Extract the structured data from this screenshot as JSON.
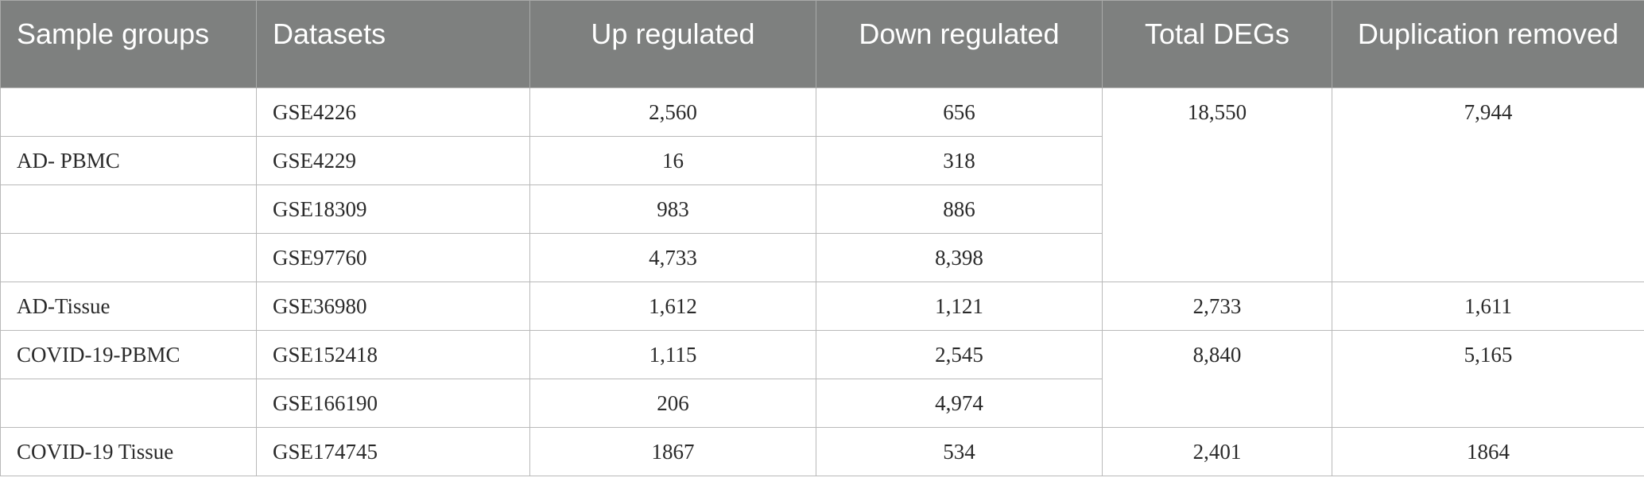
{
  "table": {
    "headers": {
      "sample_groups": "Sample groups",
      "datasets": "Datasets",
      "up_regulated": "Up regulated",
      "down_regulated": "Down regulated",
      "total_degs": "Total DEGs",
      "duplication_removed": "Duplication removed"
    },
    "groups": {
      "ad_pbmc": {
        "label": "AD- PBMC",
        "total": "18,550",
        "dup_removed": "7,944",
        "rows": [
          {
            "dataset": "GSE4226",
            "up": "2,560",
            "down": "656"
          },
          {
            "dataset": "GSE4229",
            "up": "16",
            "down": "318"
          },
          {
            "dataset": "GSE18309",
            "up": "983",
            "down": "886"
          },
          {
            "dataset": "GSE97760",
            "up": "4,733",
            "down": "8,398"
          }
        ]
      },
      "ad_tissue": {
        "label": "AD-Tissue",
        "total": "2,733",
        "dup_removed": "1,611",
        "rows": [
          {
            "dataset": "GSE36980",
            "up": "1,612",
            "down": "1,121"
          }
        ]
      },
      "covid_pbmc": {
        "label": "COVID-19-PBMC",
        "total": "8,840",
        "dup_removed": "5,165",
        "rows": [
          {
            "dataset": "GSE152418",
            "up": "1,115",
            "down": "2,545"
          },
          {
            "dataset": "GSE166190",
            "up": "206",
            "down": "4,974"
          }
        ]
      },
      "covid_tissue": {
        "label": "COVID-19 Tissue",
        "total": "2,401",
        "dup_removed": "1864",
        "rows": [
          {
            "dataset": "GSE174745",
            "up": "1867",
            "down": "534"
          }
        ]
      }
    }
  }
}
